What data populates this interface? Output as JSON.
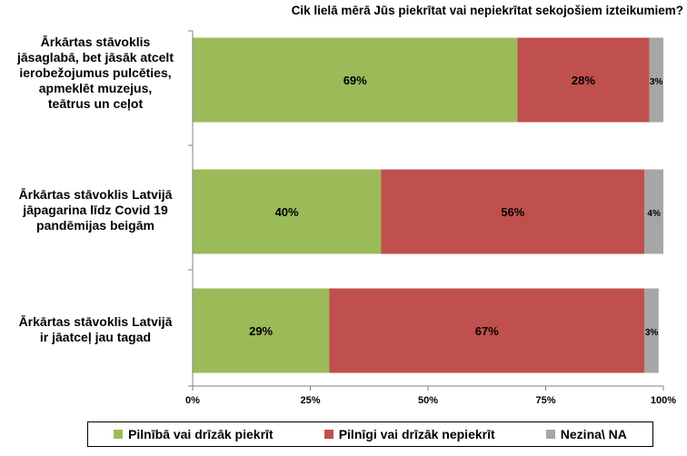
{
  "chart_data": {
    "type": "bar",
    "orientation": "horizontal",
    "stacked": true,
    "title": "Cik lielā mērā Jūs piekrītat vai nepiekrītat sekojošiem izteikumiem?",
    "categories": [
      "Ārkārtas stāvoklis\njāsaglabā, bet jāsāk atcelt\nierobežojumus pulcēties,\napmeklēt muzejus,\nteātrus un ceļot",
      "Ārkārtas stāvoklis Latvijā\njāpagarina līdz Covid 19\npandēmijas beigām",
      "Ārkārtas stāvoklis Latvijā\nir jāatceļ jau tagad"
    ],
    "series": [
      {
        "name": "Pilnībā vai drīzāk piekrīt",
        "color": "#9bbb59",
        "values": [
          69,
          40,
          29
        ],
        "labels": [
          "69%",
          "40%",
          "29%"
        ]
      },
      {
        "name": "Pilnīgi vai drīzāk nepiekrīt",
        "color": "#c0504d",
        "values": [
          28,
          56,
          67
        ],
        "labels": [
          "28%",
          "56%",
          "67%"
        ]
      },
      {
        "name": "Nezina\\ NA",
        "color": "#a6a6a6",
        "values": [
          3,
          4,
          3
        ],
        "labels": [
          "3%",
          "4%",
          "3%"
        ]
      }
    ],
    "xlim": [
      0,
      100
    ],
    "x_ticks": [
      "0%",
      "25%",
      "50%",
      "75%",
      "100%"
    ],
    "grid": true,
    "legend_position": "bottom"
  }
}
